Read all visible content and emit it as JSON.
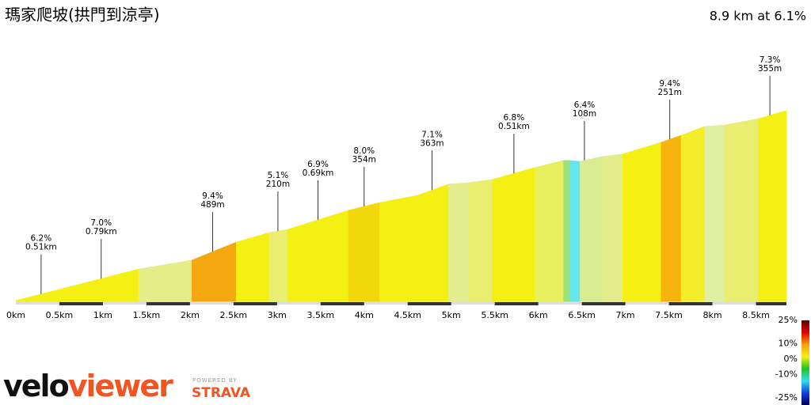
{
  "chart_data": {
    "type": "elevation-profile",
    "title": "瑪家爬坡(拱門到涼亭)",
    "subtitle": "8.9 km at 6.1%",
    "x": [
      0,
      1.41,
      2.02,
      2.53,
      2.91,
      3.12,
      3.82,
      4.18,
      4.61,
      4.97,
      5.2,
      5.47,
      5.96,
      6.29,
      6.36,
      6.48,
      6.73,
      6.97,
      7.41,
      7.64,
      7.91,
      8.14,
      8.53,
      8.85
    ],
    "elevation": [
      7,
      96,
      121,
      172,
      199,
      208,
      262,
      284,
      304,
      336,
      340,
      349,
      383,
      403,
      403,
      400,
      414,
      421,
      454,
      474,
      499,
      503,
      521,
      544
    ],
    "segment_colors": [
      "#f4f014",
      "#e4ee88",
      "#f5a70f",
      "#f4f014",
      "#ebee70",
      "#f4f014",
      "#f2d80a",
      "#f4f014",
      "#f4f014",
      "#e1ed8f",
      "#eaee6e",
      "#f4f014",
      "#e8ef5e",
      "#9be27c",
      "#64e6ee",
      "#d9ec90",
      "#e2ec8a",
      "#f4f014",
      "#f6b40c",
      "#f3ed2a",
      "#dfeea0",
      "#eaee6e",
      "#f4f014"
    ],
    "xlim": [
      0,
      8.85
    ],
    "ylim": [
      0,
      550
    ],
    "xticks": [
      {
        "value": 0,
        "label": "0km"
      },
      {
        "value": 0.5,
        "label": "0.5km"
      },
      {
        "value": 1,
        "label": "1km"
      },
      {
        "value": 1.5,
        "label": "1.5km"
      },
      {
        "value": 2,
        "label": "2km"
      },
      {
        "value": 2.5,
        "label": "2.5km"
      },
      {
        "value": 3,
        "label": "3km"
      },
      {
        "value": 3.5,
        "label": "3.5km"
      },
      {
        "value": 4,
        "label": "4km"
      },
      {
        "value": 4.5,
        "label": "4.5km"
      },
      {
        "value": 5,
        "label": "5km"
      },
      {
        "value": 5.5,
        "label": "5.5km"
      },
      {
        "value": 6,
        "label": "6km"
      },
      {
        "value": 6.5,
        "label": "6.5km"
      },
      {
        "value": 7,
        "label": "7km"
      },
      {
        "value": 7.5,
        "label": "7.5km"
      },
      {
        "value": 8,
        "label": "8km"
      },
      {
        "value": 8.5,
        "label": "8.5km"
      }
    ],
    "annotations": [
      {
        "x": 0.29,
        "grade": "6.2%",
        "length": "0.51km"
      },
      {
        "x": 0.98,
        "grade": "7.0%",
        "length": "0.79km"
      },
      {
        "x": 2.26,
        "grade": "9.4%",
        "length": "489m"
      },
      {
        "x": 3.01,
        "grade": "5.1%",
        "length": "210m"
      },
      {
        "x": 3.47,
        "grade": "6.9%",
        "length": "0.69km"
      },
      {
        "x": 4.0,
        "grade": "8.0%",
        "length": "354m"
      },
      {
        "x": 4.78,
        "grade": "7.1%",
        "length": "363m"
      },
      {
        "x": 5.72,
        "grade": "6.8%",
        "length": "0.51km"
      },
      {
        "x": 6.53,
        "grade": "6.4%",
        "length": "108m"
      },
      {
        "x": 7.51,
        "grade": "9.4%",
        "length": "251m"
      },
      {
        "x": 8.66,
        "grade": "7.3%",
        "length": "355m"
      }
    ],
    "colorscale": {
      "lim": [
        -25,
        25
      ],
      "ticks": [
        {
          "value": 25,
          "label": "25%"
        },
        {
          "value": 10,
          "label": "10%"
        },
        {
          "value": 0,
          "label": "0%"
        },
        {
          "value": -10,
          "label": "-10%"
        },
        {
          "value": -25,
          "label": "-25%"
        }
      ],
      "colors": [
        "#5a0000",
        "#e00000",
        "#f6a00a",
        "#f4f014",
        "#22c022",
        "#30e0f0",
        "#1040e0",
        "#000050"
      ]
    }
  },
  "branding": {
    "velo": "velo",
    "viewer": "viewer",
    "powered": "POWERED BY",
    "strava": "STRAVA"
  }
}
